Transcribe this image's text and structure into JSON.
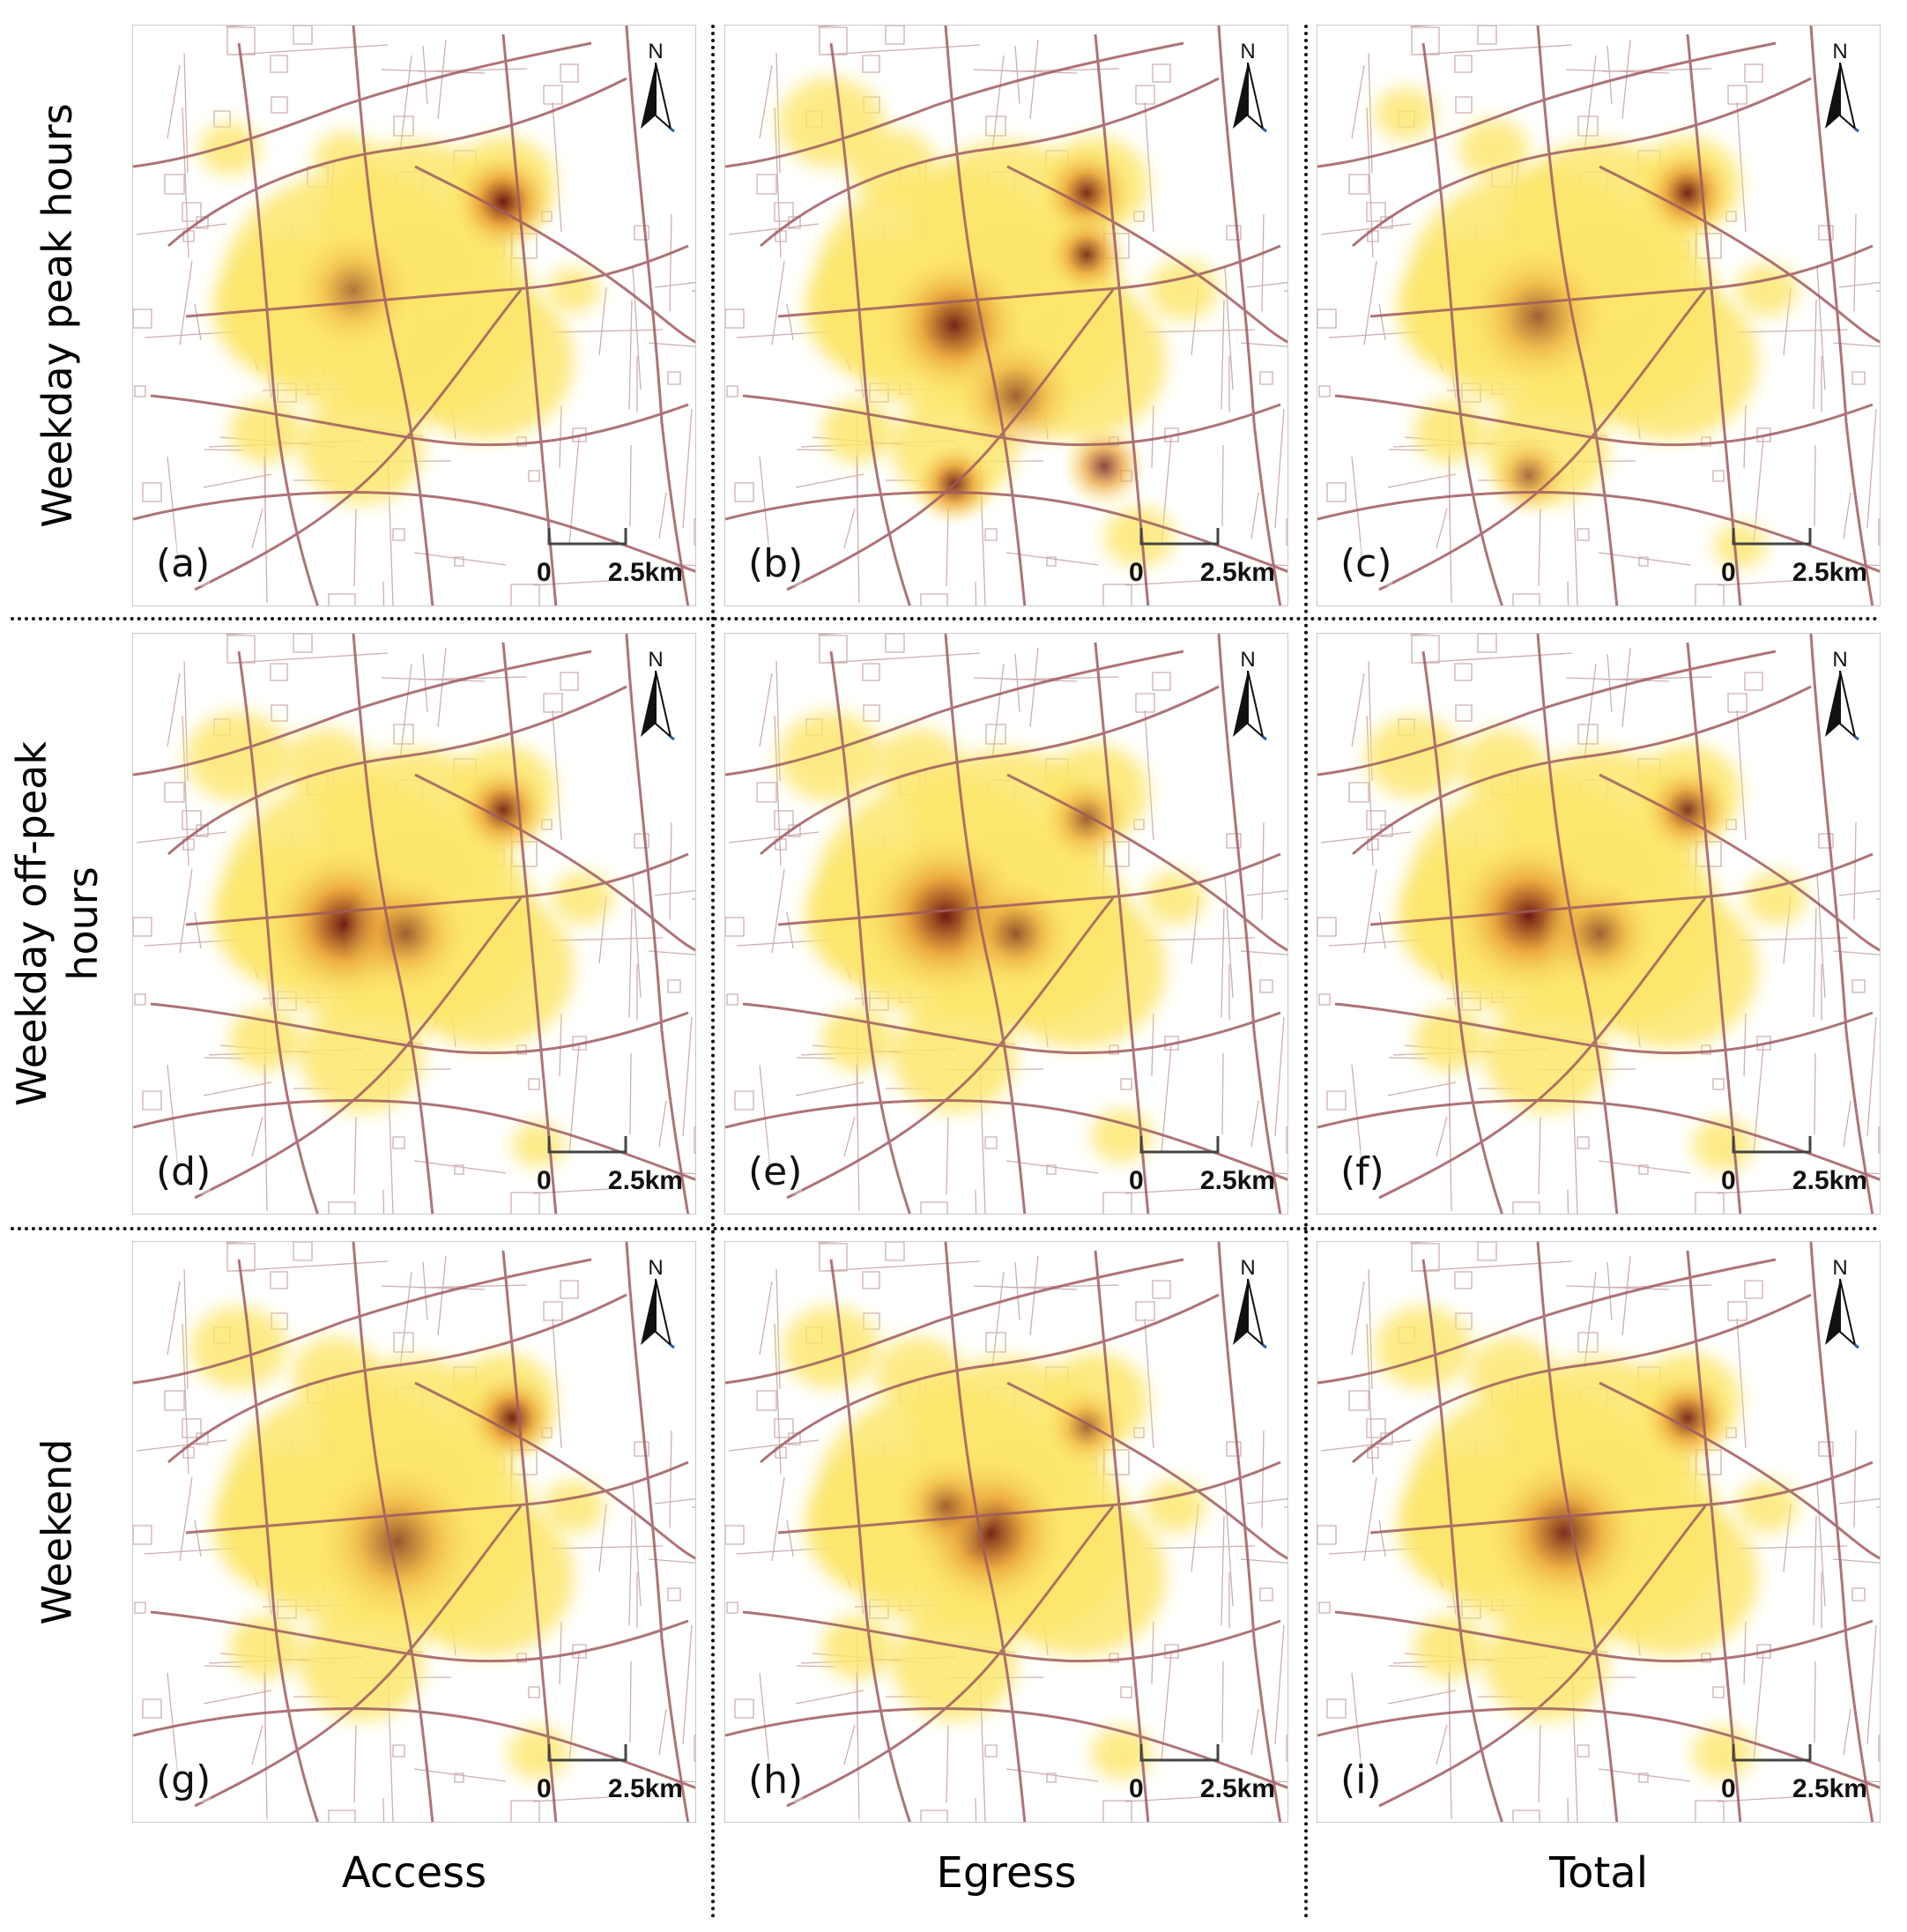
{
  "rows": [
    {
      "label": "Weekday peak hours"
    },
    {
      "label": "Weekday off-peak\nhours"
    },
    {
      "label": "Weekend"
    }
  ],
  "columns": [
    {
      "label": "Access"
    },
    {
      "label": "Egress"
    },
    {
      "label": "Total"
    }
  ],
  "panels": [
    {
      "id": "(a)",
      "row": 0,
      "col": 0
    },
    {
      "id": "(b)",
      "row": 0,
      "col": 1
    },
    {
      "id": "(c)",
      "row": 0,
      "col": 2
    },
    {
      "id": "(d)",
      "row": 1,
      "col": 0
    },
    {
      "id": "(e)",
      "row": 1,
      "col": 1
    },
    {
      "id": "(f)",
      "row": 1,
      "col": 2
    },
    {
      "id": "(g)",
      "row": 2,
      "col": 0
    },
    {
      "id": "(h)",
      "row": 2,
      "col": 1
    },
    {
      "id": "(i)",
      "row": 2,
      "col": 2
    }
  ],
  "north_arrow": {
    "letter": "N"
  },
  "scale_bar": {
    "start_label": "0",
    "end_label": "2.5km"
  },
  "colors": {
    "road": "#a05b60",
    "minor_road": "#c9a6a8",
    "density_low": "#fde66b",
    "density_mid": "#e9a23a",
    "density_high": "#6e1a12"
  }
}
